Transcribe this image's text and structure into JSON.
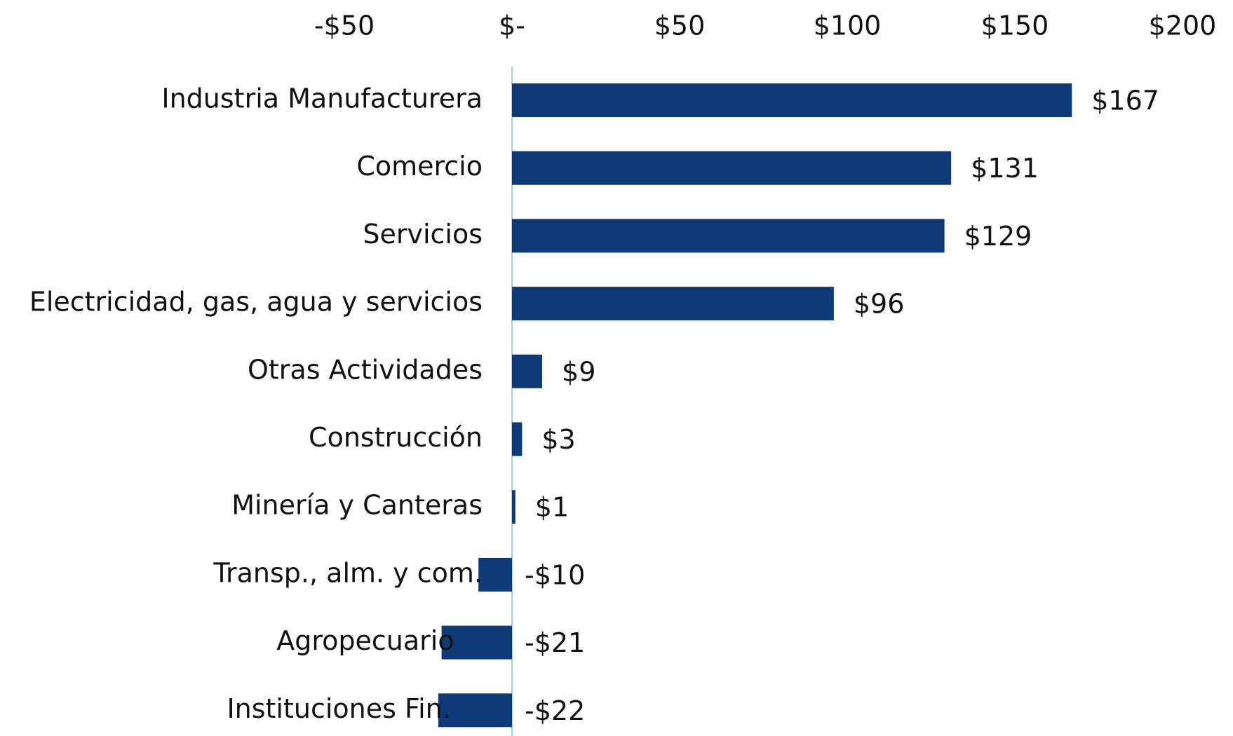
{
  "chart_data": {
    "type": "barh",
    "categories": [
      "Industria Manufacturera",
      "Comercio",
      "Servicios",
      "Electricidad, gas, agua y servicios",
      "Otras Actividades",
      "Construcción",
      "Minería y Canteras",
      "Transp., alm. y com.",
      "Agropecuario",
      "Instituciones Fin."
    ],
    "values": [
      167,
      131,
      129,
      96,
      9,
      3,
      1,
      -10,
      -21,
      -22
    ],
    "value_labels": [
      "$167",
      "$131",
      "$129",
      "$96",
      "$9",
      "$3",
      "$1",
      "-$10",
      "-$21",
      "-$22"
    ],
    "color": "#0e3a78",
    "xlim": [
      -50,
      200
    ],
    "xticks": [
      {
        "value": -50,
        "label": "-$50"
      },
      {
        "value": 0,
        "label": "$-"
      },
      {
        "value": 50,
        "label": "$50"
      },
      {
        "value": 100,
        "label": "$100"
      },
      {
        "value": 150,
        "label": "$150"
      },
      {
        "value": 200,
        "label": "$200"
      }
    ],
    "grid": false
  }
}
